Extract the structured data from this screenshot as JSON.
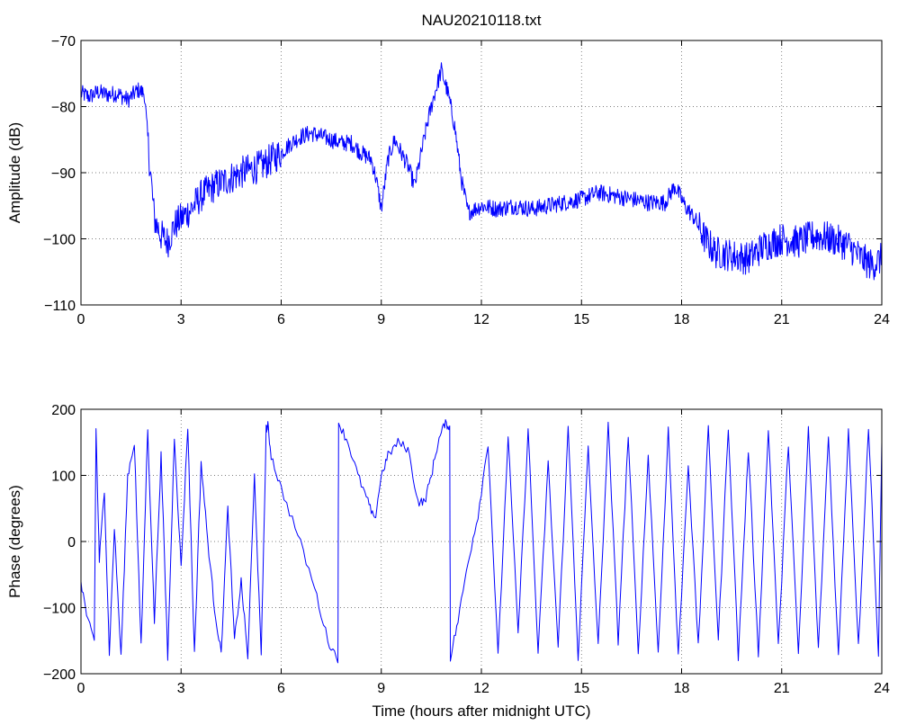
{
  "chart_data": [
    {
      "type": "line",
      "title": "NAU20210118.txt",
      "xlabel": "",
      "ylabel": "Amplitude (dB)",
      "xlim": [
        0,
        24
      ],
      "ylim": [
        -110,
        -70
      ],
      "xticks": [
        0,
        3,
        6,
        9,
        12,
        15,
        18,
        21,
        24
      ],
      "yticks": [
        -70,
        -80,
        -90,
        -100,
        -110
      ],
      "xtick_labels": [
        "0",
        "3",
        "6",
        "9",
        "12",
        "15",
        "18",
        "21",
        "24"
      ],
      "ytick_labels": [
        "−70",
        "−80",
        "−90",
        "−100",
        "−110"
      ],
      "grid": true,
      "series": [
        {
          "color": "#0000ff",
          "x": [
            0,
            0.25,
            0.5,
            0.8,
            1.1,
            1.4,
            1.7,
            1.9,
            2.05,
            2.2,
            2.4,
            2.6,
            2.8,
            3.0,
            3.3,
            3.6,
            4.0,
            4.4,
            4.8,
            5.1,
            5.4,
            5.7,
            6.0,
            6.3,
            6.6,
            6.9,
            7.2,
            7.5,
            7.8,
            8.1,
            8.4,
            8.7,
            8.85,
            9.0,
            9.2,
            9.4,
            9.6,
            9.8,
            10.0,
            10.2,
            10.4,
            10.6,
            10.8,
            11.0,
            11.2,
            11.4,
            11.6,
            11.8,
            12.0,
            12.5,
            13.0,
            13.5,
            14.0,
            14.5,
            15.0,
            15.5,
            16.0,
            16.5,
            17.0,
            17.5,
            17.8,
            18.1,
            18.4,
            18.7,
            19.0,
            19.5,
            20.0,
            20.5,
            21.0,
            21.5,
            22.0,
            22.5,
            23.0,
            23.4,
            23.7,
            24.0
          ],
          "y": [
            -78,
            -78.5,
            -77.8,
            -78.2,
            -78,
            -79,
            -77.5,
            -78,
            -88,
            -97,
            -99.5,
            -100.5,
            -98,
            -97,
            -95.5,
            -93.5,
            -92,
            -91,
            -90,
            -89.5,
            -89,
            -88,
            -87,
            -85.5,
            -84.5,
            -84,
            -84.5,
            -85,
            -85.5,
            -85.5,
            -87,
            -88,
            -91,
            -95.5,
            -88,
            -85,
            -87,
            -89,
            -92,
            -87,
            -82,
            -78,
            -74.5,
            -78,
            -83,
            -91,
            -96,
            -95.5,
            -95,
            -95.5,
            -95,
            -95.5,
            -95,
            -94.5,
            -94,
            -93,
            -93.5,
            -94,
            -94.5,
            -94.5,
            -92,
            -95,
            -97,
            -100,
            -102,
            -102.5,
            -103,
            -101,
            -100,
            -100.5,
            -99.5,
            -100,
            -101,
            -103,
            -104,
            -103
          ]
        }
      ]
    },
    {
      "type": "line",
      "title": "",
      "xlabel": "Time (hours after midnight UTC)",
      "ylabel": "Phase (degrees)",
      "xlim": [
        0,
        24
      ],
      "ylim": [
        -200,
        200
      ],
      "xticks": [
        0,
        3,
        6,
        9,
        12,
        15,
        18,
        21,
        24
      ],
      "yticks": [
        200,
        100,
        0,
        -100,
        -200
      ],
      "xtick_labels": [
        "0",
        "3",
        "6",
        "9",
        "12",
        "15",
        "18",
        "21",
        "24"
      ],
      "ytick_labels": [
        "200",
        "100",
        "0",
        "−100",
        "−200"
      ],
      "grid": true,
      "series": [
        {
          "color": "#0000ff",
          "x": [
            0,
            0.2,
            0.4,
            0.45,
            0.55,
            0.7,
            0.85,
            1.0,
            1.2,
            1.4,
            1.6,
            1.8,
            2.0,
            2.2,
            2.4,
            2.6,
            2.8,
            3.0,
            3.2,
            3.4,
            3.6,
            3.8,
            4.0,
            4.2,
            4.4,
            4.6,
            4.8,
            5.0,
            5.2,
            5.4,
            5.55,
            5.6,
            5.7,
            6.0,
            6.5,
            7.0,
            7.4,
            7.7,
            7.72,
            8.0,
            8.3,
            8.6,
            8.8,
            9.0,
            9.2,
            9.5,
            9.8,
            10.1,
            10.3,
            10.5,
            10.7,
            10.9,
            11.05,
            11.07,
            11.3,
            11.6,
            11.9,
            12.2,
            12.5,
            12.8,
            13.1,
            13.4,
            13.7,
            14.0,
            14.3,
            14.6,
            14.9,
            15.2,
            15.5,
            15.8,
            16.1,
            16.4,
            16.7,
            17.0,
            17.3,
            17.6,
            17.9,
            18.2,
            18.5,
            18.8,
            19.1,
            19.4,
            19.7,
            20.0,
            20.3,
            20.6,
            20.9,
            21.2,
            21.5,
            21.8,
            22.1,
            22.4,
            22.7,
            23.0,
            23.3,
            23.6,
            23.9,
            24.0
          ],
          "y": [
            -60,
            -120,
            -150,
            170,
            -30,
            80,
            -170,
            20,
            -175,
            100,
            150,
            -160,
            170,
            -120,
            130,
            -175,
            160,
            -40,
            175,
            -170,
            120,
            0,
            -100,
            -170,
            50,
            -150,
            -60,
            -175,
            100,
            -175,
            170,
            175,
            130,
            80,
            10,
            -70,
            -150,
            -178,
            180,
            150,
            100,
            60,
            30,
            100,
            130,
            150,
            140,
            60,
            60,
            100,
            150,
            178,
            175,
            -175,
            -120,
            -30,
            40,
            150,
            -175,
            160,
            -140,
            170,
            -170,
            120,
            -160,
            170,
            -175,
            140,
            -160,
            175,
            -150,
            160,
            -170,
            130,
            -170,
            170,
            -175,
            120,
            -160,
            170,
            -150,
            175,
            -175,
            140,
            -170,
            170,
            -160,
            150,
            -175,
            170,
            -165,
            160,
            -175,
            170,
            -160,
            175,
            -170,
            150
          ]
        }
      ]
    }
  ]
}
